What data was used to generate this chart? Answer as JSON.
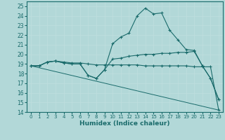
{
  "xlabel": "Humidex (Indice chaleur)",
  "background_color": "#b2d8d8",
  "grid_color": "#d0e8e8",
  "line_color": "#1a6b6b",
  "xlim": [
    -0.5,
    23.5
  ],
  "ylim": [
    14,
    25.5
  ],
  "yticks": [
    14,
    15,
    16,
    17,
    18,
    19,
    20,
    21,
    22,
    23,
    24,
    25
  ],
  "xticks": [
    0,
    1,
    2,
    3,
    4,
    5,
    6,
    7,
    8,
    9,
    10,
    11,
    12,
    13,
    14,
    15,
    16,
    17,
    18,
    19,
    20,
    21,
    22,
    23
  ],
  "line1_x": [
    0,
    1,
    2,
    3,
    4,
    5,
    6,
    7,
    8,
    9,
    10,
    11,
    12,
    13,
    14,
    15,
    16,
    17,
    18,
    19,
    20,
    21,
    22,
    23
  ],
  "line1_y": [
    18.8,
    18.8,
    19.2,
    19.3,
    19.1,
    19.0,
    19.0,
    17.8,
    17.5,
    18.4,
    21.1,
    21.8,
    22.2,
    24.0,
    24.8,
    24.2,
    24.3,
    22.5,
    21.5,
    20.5,
    20.4,
    18.8,
    17.5,
    15.3
  ],
  "line2_x": [
    0,
    1,
    2,
    3,
    4,
    5,
    6,
    7,
    8,
    9,
    10,
    11,
    12,
    13,
    14,
    15,
    16,
    17,
    18,
    19,
    20,
    21,
    22,
    23
  ],
  "line2_y": [
    18.8,
    18.8,
    19.2,
    19.3,
    19.1,
    19.0,
    19.0,
    17.8,
    17.5,
    18.4,
    19.5,
    19.6,
    19.8,
    19.9,
    20.0,
    20.0,
    20.1,
    20.1,
    20.2,
    20.2,
    20.3,
    18.8,
    17.5,
    15.3
  ],
  "line3_x": [
    0,
    1,
    2,
    3,
    4,
    5,
    6,
    7,
    8,
    9,
    10,
    11,
    12,
    13,
    14,
    15,
    16,
    17,
    18,
    19,
    20,
    21,
    22,
    23
  ],
  "line3_y": [
    18.8,
    18.8,
    19.2,
    19.3,
    19.2,
    19.1,
    19.1,
    19.0,
    18.9,
    18.9,
    18.9,
    18.9,
    18.9,
    18.9,
    18.8,
    18.8,
    18.8,
    18.8,
    18.8,
    18.8,
    18.7,
    18.7,
    18.7,
    14.2
  ],
  "line4_x": [
    0,
    23
  ],
  "line4_y": [
    18.8,
    14.2
  ]
}
